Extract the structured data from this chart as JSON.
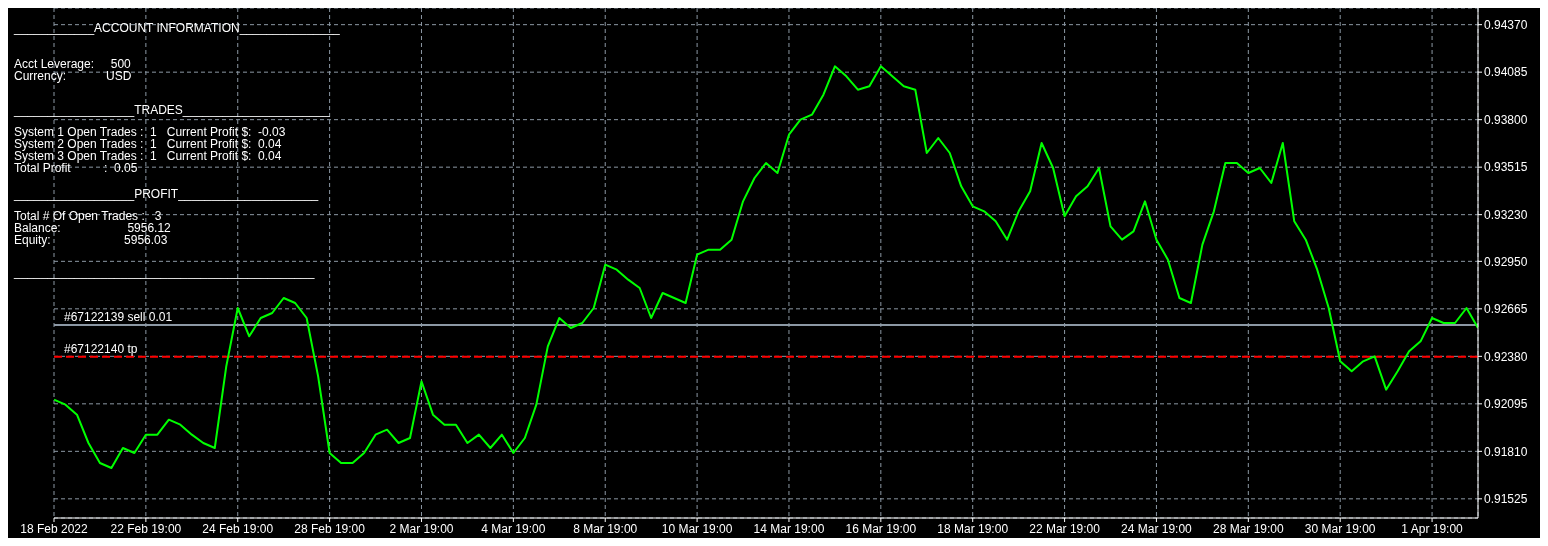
{
  "chart_data": {
    "type": "line",
    "color": "#00ff00",
    "line_style": "solid",
    "marker": "none",
    "grid": true,
    "legend": false,
    "categories": [
      "18 Feb 2022",
      null,
      null,
      null,
      null,
      null,
      null,
      null,
      "22 Feb 19:00",
      null,
      null,
      null,
      null,
      null,
      null,
      null,
      "24 Feb 19:00",
      null,
      null,
      null,
      null,
      null,
      null,
      null,
      "28 Feb 19:00",
      null,
      null,
      null,
      null,
      null,
      null,
      null,
      "2 Mar 19:00",
      null,
      null,
      null,
      null,
      null,
      null,
      null,
      "4 Mar 19:00",
      null,
      null,
      null,
      null,
      null,
      null,
      null,
      "8 Mar 19:00",
      null,
      null,
      null,
      null,
      null,
      null,
      null,
      "10 Mar 19:00",
      null,
      null,
      null,
      null,
      null,
      null,
      null,
      "14 Mar 19:00",
      null,
      null,
      null,
      null,
      null,
      null,
      null,
      "16 Mar 19:00",
      null,
      null,
      null,
      null,
      null,
      null,
      null,
      "18 Mar 19:00",
      null,
      null,
      null,
      null,
      null,
      null,
      null,
      "22 Mar 19:00",
      null,
      null,
      null,
      null,
      null,
      null,
      null,
      "24 Mar 19:00",
      null,
      null,
      null,
      null,
      null,
      null,
      null,
      "28 Mar 19:00",
      null,
      null,
      null,
      null,
      null,
      null,
      null,
      "30 Mar 19:00",
      null,
      null,
      null,
      null,
      null,
      null,
      null,
      "1 Apr 19:00",
      null,
      null,
      null,
      null
    ],
    "values": [
      0.9212,
      0.9209,
      0.9203,
      0.9186,
      0.9174,
      0.9171,
      0.9183,
      0.918,
      0.9191,
      0.9191,
      0.92,
      0.9197,
      0.9191,
      0.9186,
      0.9183,
      0.9232,
      0.9267,
      0.925,
      0.9261,
      0.9264,
      0.9273,
      0.927,
      0.9261,
      0.9226,
      0.918,
      0.9174,
      0.9174,
      0.918,
      0.9191,
      0.9194,
      0.9186,
      0.9189,
      0.9223,
      0.9203,
      0.9197,
      0.9197,
      0.9186,
      0.9191,
      0.9183,
      0.9191,
      0.918,
      0.9189,
      0.9209,
      0.9244,
      0.9261,
      0.9255,
      0.9258,
      0.9267,
      0.9293,
      0.929,
      0.9284,
      0.9279,
      0.9261,
      0.9276,
      0.9273,
      0.927,
      0.9299,
      0.9302,
      0.9302,
      0.9308,
      0.9331,
      0.9345,
      0.9354,
      0.9348,
      0.9371,
      0.938,
      0.9383,
      0.9395,
      0.9412,
      0.9406,
      0.9398,
      0.94,
      0.9412,
      0.9406,
      0.94,
      0.9398,
      0.936,
      0.9369,
      0.936,
      0.934,
      0.9328,
      0.9325,
      0.9319,
      0.9308,
      0.9325,
      0.9337,
      0.9366,
      0.9351,
      0.9322,
      0.9334,
      0.934,
      0.9351,
      0.9316,
      0.9308,
      0.9313,
      0.9331,
      0.9308,
      0.9296,
      0.9273,
      0.927,
      0.9305,
      0.9325,
      0.9354,
      0.9354,
      0.9348,
      0.9351,
      0.9342,
      0.9366,
      0.9319,
      0.9308,
      0.929,
      0.9267,
      0.9235,
      0.9229,
      0.9235,
      0.9238,
      0.9218,
      0.9229,
      0.9241,
      0.9247,
      0.9261,
      0.9258,
      0.9258,
      0.9267,
      0.9255
    ],
    "ylim": [
      0.9141,
      0.9447
    ],
    "yticks": [
      {
        "value": 0.91525,
        "label": "0.91525"
      },
      {
        "value": 0.9181,
        "label": "0.91810"
      },
      {
        "value": 0.92095,
        "label": "0.92095"
      },
      {
        "value": 0.9238,
        "label": "0.92380"
      },
      {
        "value": 0.92665,
        "label": "0.92665"
      },
      {
        "value": 0.9295,
        "label": "0.92950"
      },
      {
        "value": 0.9323,
        "label": "0.93230"
      },
      {
        "value": 0.93515,
        "label": "0.93515"
      },
      {
        "value": 0.938,
        "label": "0.93800"
      },
      {
        "value": 0.94085,
        "label": "0.94085"
      },
      {
        "value": 0.9437,
        "label": "0.94370"
      }
    ],
    "ref_lines": [
      {
        "axis": "y",
        "value": 0.92568,
        "label": "#67122139 sell 0.01",
        "color": "#8c98a4",
        "line_style": "solid"
      },
      {
        "axis": "y",
        "value": 0.92378,
        "label": "#67122140 tp",
        "color": "#ff0000",
        "line_style": "dashed"
      }
    ],
    "annotations": [
      "____________ACCOUNT INFORMATION_______________",
      "Acct Leverage:     500",
      "Currency:            USD",
      "__________________TRADES______________________",
      "System 1 Open Trades :  1   Current Profit $:  -0.03",
      "System 2 Open Trades :  1   Current Profit $:  0.04",
      "System 3 Open Trades :  1   Current Profit $:  0.04",
      "Total Profit          :  0.05",
      "__________________PROFIT_____________________",
      "Total # Of Open Trades :   3",
      "Balance:                    5956.12",
      "Equity:                      5956.03",
      "_____________________________________________"
    ]
  }
}
